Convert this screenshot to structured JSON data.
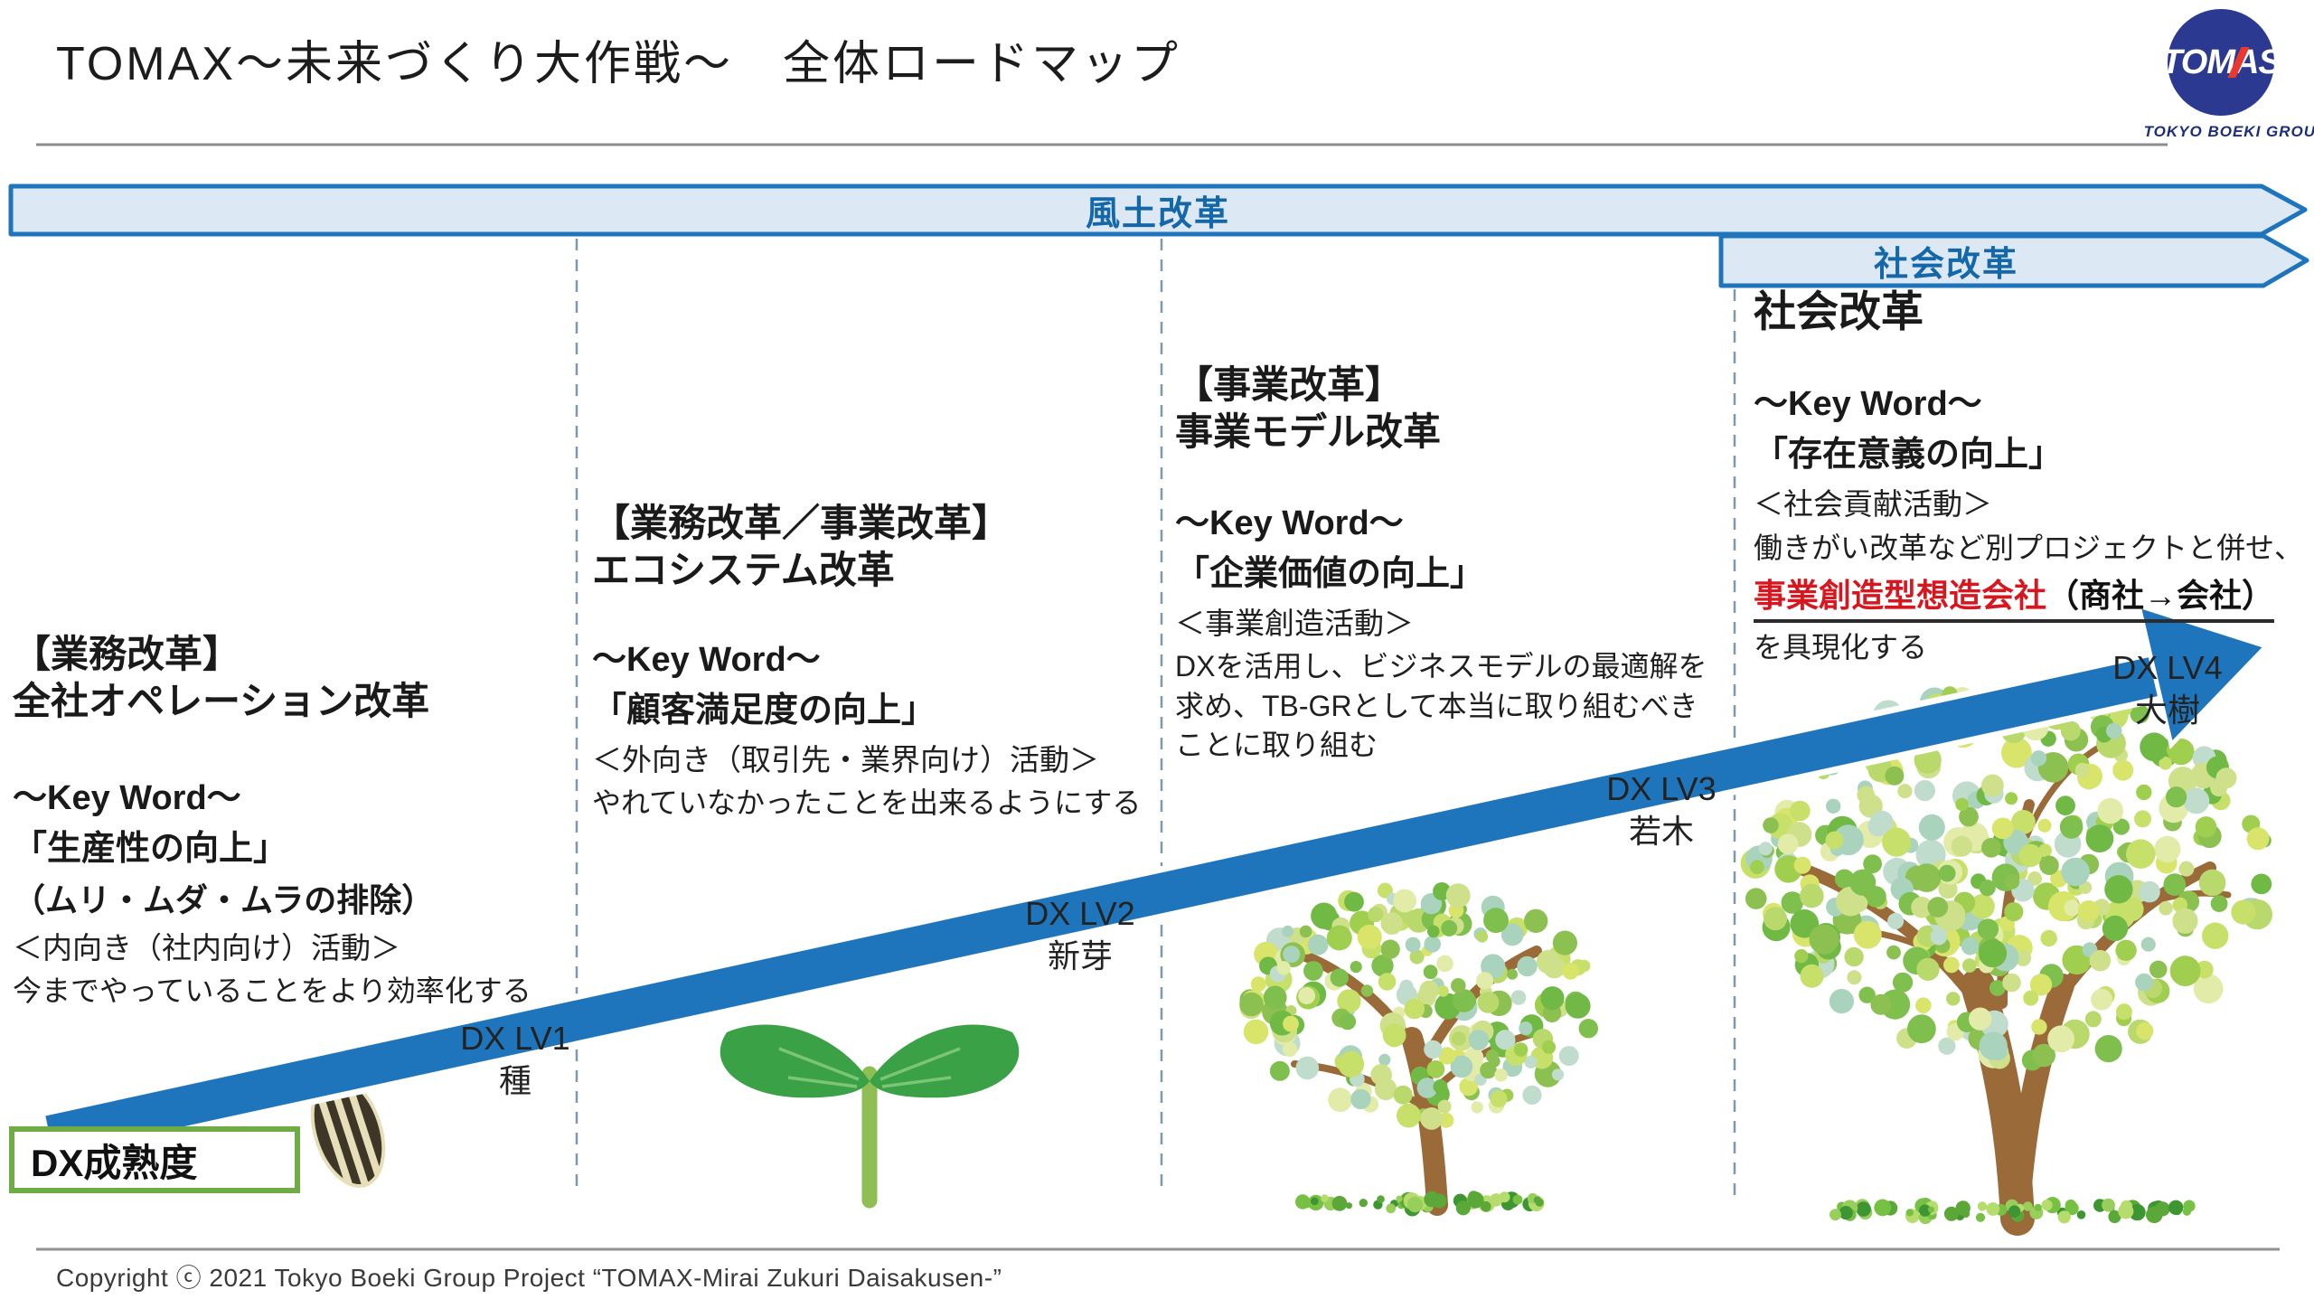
{
  "page": {
    "title": "TOMAX～未来づくり大作戦～　全体ロードマップ"
  },
  "logo": {
    "brand": "TOMAS",
    "group": "TOKYO BOEKI GROUP",
    "circle_color": "#2B3990",
    "accent_red": "#E8382F"
  },
  "banners": {
    "culture": "風土改革",
    "society": "社会改革"
  },
  "columns": [
    {
      "heading": [
        "【業務改革】",
        "全社オペレーション改革"
      ],
      "keyword_label": "～Key Word～",
      "keyword": "「生産性の向上」",
      "keyword_note": "（ムリ・ムダ・ムラの排除）",
      "activity": "＜内向き（社内向け）活動＞",
      "description": [
        "今までやっていることをより効率化する"
      ]
    },
    {
      "heading": [
        "【業務改革／事業改革】",
        "エコシステム改革"
      ],
      "keyword_label": "～Key Word～",
      "keyword": "「顧客満足度の向上」",
      "activity": "＜外向き（取引先・業界向け）活動＞",
      "description": [
        "やれていなかったことを出来るようにする"
      ]
    },
    {
      "heading": [
        "【事業改革】",
        "事業モデル改革"
      ],
      "keyword_label": "～Key Word～",
      "keyword": "「企業価値の向上」",
      "activity": "＜事業創造活動＞",
      "description": [
        "DXを活用し、ビジネスモデルの最適解を",
        "求め、TB-GRとして本当に取り組むべき",
        "ことに取り組む"
      ]
    },
    {
      "heading": [
        "社会改革"
      ],
      "keyword_label": "～Key Word～",
      "keyword": "「存在意義の向上」",
      "activity": "＜社会貢献活動＞",
      "description": [
        "働きがい改革など別プロジェクトと併せ、"
      ],
      "highlight_red": "事業創造型想造会社",
      "highlight_black": "（商社→会社）",
      "description_tail": "を具現化する"
    }
  ],
  "dx_levels": [
    {
      "level": "DX LV1",
      "stage": "種"
    },
    {
      "level": "DX LV2",
      "stage": "新芽"
    },
    {
      "level": "DX LV3",
      "stage": "若木"
    },
    {
      "level": "DX LV4",
      "stage": "大樹"
    }
  ],
  "maturity_label": "DX成熟度",
  "footer": {
    "copyright": "Copyright ⓒ 2021 Tokyo Boeki Group Project “TOMAX-Mirai Zukuri Daisakusen-”"
  },
  "colors": {
    "accent_blue": "#1F75BC",
    "banner_fill": "#DCE9F5",
    "banner_text_blue": "#1467A8",
    "divider_gray_blue": "#7E98AC",
    "rule_gray": "#8C8C8C",
    "red_text": "#D7171F",
    "green_border": "#6FAC46"
  },
  "illustrations": {
    "trunk_color": "#9A6A38",
    "leaf_palette": [
      "#8CC152",
      "#A0CE4E",
      "#B9D96C",
      "#CFE08A",
      "#7FBF4D",
      "#D9E46B",
      "#BFDCCD",
      "#A9D3BD",
      "#E2ECA8",
      "#6FB944",
      "#C7E06A"
    ],
    "grass_palette": [
      "#5BA838",
      "#76C043",
      "#98CE5B",
      "#3E9632",
      "#B5DC6C"
    ],
    "seed_body": "#3E3626",
    "seed_stripe": "#E6DFBA",
    "sprout_leaf": "#3BA147",
    "sprout_leaf_vein": "#7CC576",
    "sprout_stem": "#8FBE54"
  }
}
